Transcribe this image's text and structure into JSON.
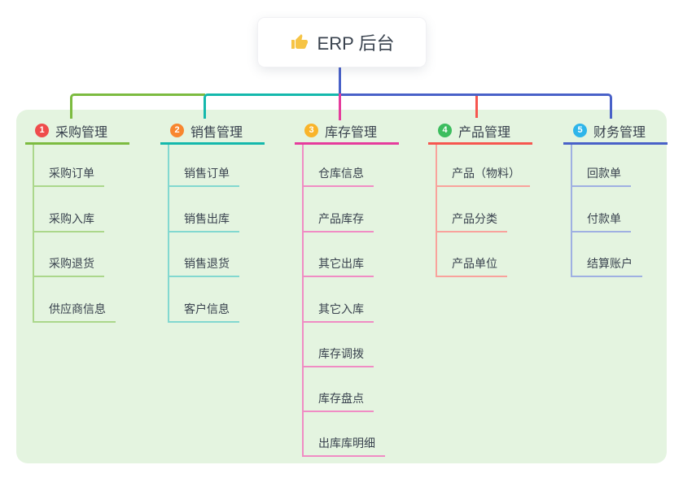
{
  "root": {
    "label": "ERP 后台",
    "icon": "thumbs-up",
    "icon_color": "#f6c445"
  },
  "colors": {
    "panel_background": "#e4f4e0",
    "root_connector": "#4961c8",
    "text": "#39424e"
  },
  "branches": [
    {
      "number": "1",
      "label": "采购管理",
      "badge_color": "#ef4c4c",
      "line_color": "#7cbb40",
      "child_line_color": "#abd78b",
      "children": [
        "采购订单",
        "采购入库",
        "采购退货",
        "供应商信息"
      ]
    },
    {
      "number": "2",
      "label": "销售管理",
      "badge_color": "#f8862f",
      "line_color": "#14b8ac",
      "child_line_color": "#82d8d0",
      "children": [
        "销售订单",
        "销售出库",
        "销售退货",
        "客户信息"
      ]
    },
    {
      "number": "3",
      "label": "库存管理",
      "badge_color": "#f9b42a",
      "line_color": "#e53c9c",
      "child_line_color": "#f08cc4",
      "children": [
        "仓库信息",
        "产品库存",
        "其它出库",
        "其它入库",
        "库存调拨",
        "库存盘点",
        "出库库明细"
      ]
    },
    {
      "number": "4",
      "label": "产品管理",
      "badge_color": "#3cbd5e",
      "line_color": "#f6564f",
      "child_line_color": "#f9a29c",
      "children": [
        "产品（物料）",
        "产品分类",
        "产品单位"
      ]
    },
    {
      "number": "5",
      "label": "财务管理",
      "badge_color": "#2eb5ea",
      "line_color": "#4961c8",
      "child_line_color": "#9fb0e2",
      "children": [
        "回款单",
        "付款单",
        "结算账户"
      ]
    }
  ]
}
